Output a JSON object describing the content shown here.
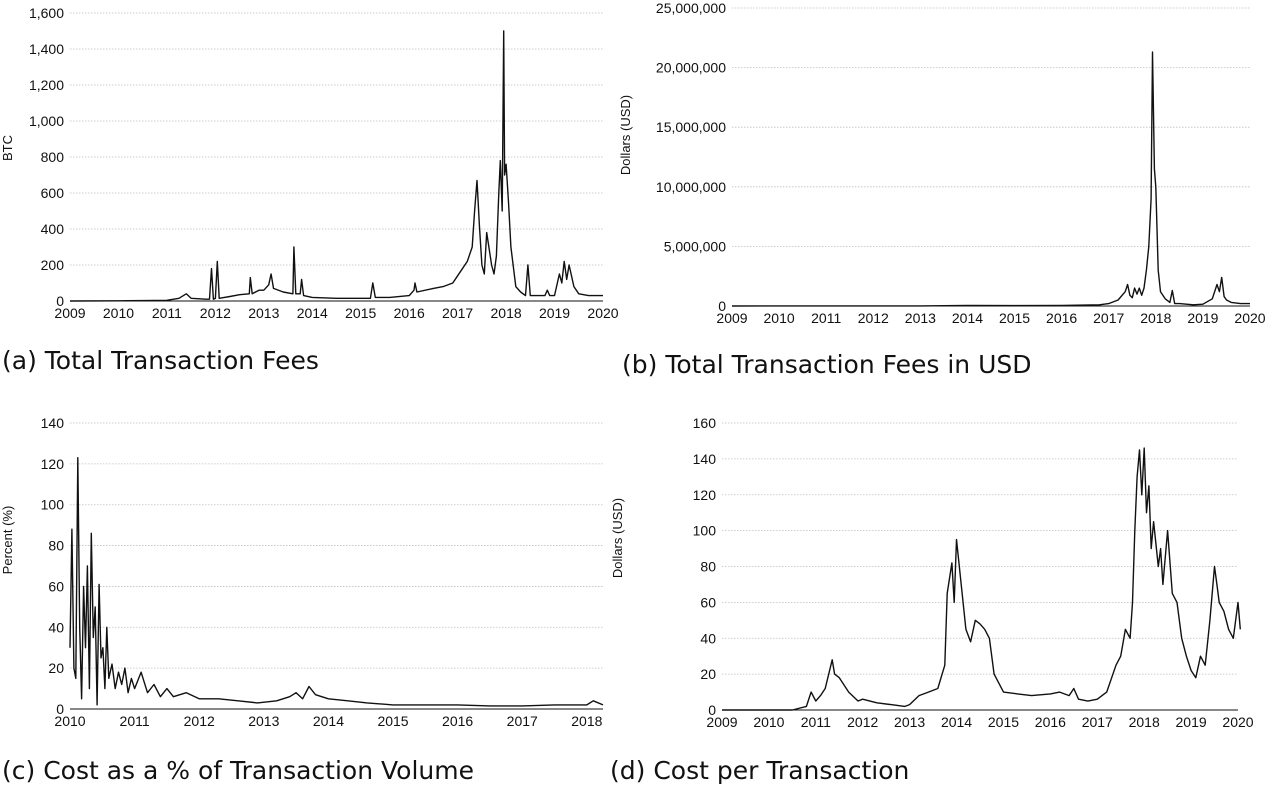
{
  "chart_data": [
    {
      "id": "a",
      "type": "line",
      "caption": "(a) Total Transaction Fees",
      "ylabel": "BTC",
      "xlabel": "",
      "ylim": [
        0,
        1600
      ],
      "yticks": [
        0,
        200,
        400,
        600,
        800,
        1000,
        1200,
        1400,
        1600
      ],
      "ytick_labels": [
        "0",
        "200",
        "400",
        "600",
        "800",
        "1,000",
        "1,200",
        "1,400",
        "1,600"
      ],
      "xlim": [
        2009,
        2020
      ],
      "xticks": [
        2009,
        2010,
        2011,
        2012,
        2013,
        2014,
        2015,
        2016,
        2017,
        2018,
        2019,
        2020
      ],
      "xtick_labels": [
        "2009",
        "2010",
        "2011",
        "2012",
        "2013",
        "2014",
        "2015",
        "2016",
        "2017",
        "2018",
        "2019",
        "2020"
      ],
      "grid": true,
      "series": [
        {
          "x": [
            2009.0,
            2010.0,
            2010.5,
            2011.0,
            2011.25,
            2011.4,
            2011.5,
            2011.8,
            2011.88,
            2011.92,
            2011.96,
            2012.0,
            2012.04,
            2012.08,
            2012.3,
            2012.5,
            2012.7,
            2012.72,
            2012.76,
            2012.9,
            2013.0,
            2013.1,
            2013.15,
            2013.2,
            2013.4,
            2013.6,
            2013.62,
            2013.66,
            2013.75,
            2013.78,
            2013.82,
            2014.0,
            2014.5,
            2015.0,
            2015.2,
            2015.25,
            2015.3,
            2015.6,
            2016.0,
            2016.1,
            2016.12,
            2016.16,
            2016.5,
            2016.7,
            2016.9,
            2017.0,
            2017.2,
            2017.3,
            2017.35,
            2017.4,
            2017.45,
            2017.5,
            2017.55,
            2017.6,
            2017.7,
            2017.75,
            2017.8,
            2017.85,
            2017.88,
            2017.92,
            2017.95,
            2017.97,
            2018.0,
            2018.05,
            2018.1,
            2018.2,
            2018.3,
            2018.4,
            2018.45,
            2018.5,
            2018.8,
            2018.85,
            2018.9,
            2019.0,
            2019.1,
            2019.15,
            2019.2,
            2019.25,
            2019.3,
            2019.4,
            2019.5,
            2019.7,
            2020.0
          ],
          "values": [
            0,
            1,
            2,
            4,
            15,
            40,
            15,
            10,
            10,
            180,
            10,
            15,
            220,
            15,
            25,
            35,
            40,
            130,
            40,
            60,
            60,
            90,
            150,
            70,
            50,
            40,
            300,
            40,
            40,
            120,
            30,
            20,
            15,
            15,
            15,
            100,
            20,
            20,
            30,
            60,
            100,
            50,
            70,
            80,
            100,
            140,
            220,
            300,
            500,
            670,
            420,
            200,
            150,
            380,
            200,
            150,
            250,
            600,
            780,
            500,
            1500,
            700,
            760,
            550,
            300,
            80,
            50,
            30,
            200,
            30,
            30,
            60,
            30,
            30,
            150,
            100,
            220,
            120,
            200,
            80,
            40,
            30,
            30
          ]
        }
      ]
    },
    {
      "id": "b",
      "type": "line",
      "caption": "(b) Total Transaction Fees in USD",
      "ylabel": "Dollars (USD)",
      "xlabel": "",
      "ylim": [
        0,
        25000000
      ],
      "yticks": [
        0,
        5000000,
        10000000,
        15000000,
        20000000,
        25000000
      ],
      "ytick_labels": [
        "0",
        "5,000,000",
        "10,000,000",
        "15,000,000",
        "20,000,000",
        "25,000,000"
      ],
      "xlim": [
        2009,
        2020
      ],
      "xticks": [
        2009,
        2010,
        2011,
        2012,
        2013,
        2014,
        2015,
        2016,
        2017,
        2018,
        2019,
        2020
      ],
      "xtick_labels": [
        "2009",
        "2010",
        "2011",
        "2012",
        "2013",
        "2014",
        "2015",
        "2016",
        "2017",
        "2018",
        "2019",
        "2020"
      ],
      "grid": true,
      "series": [
        {
          "x": [
            2009.0,
            2013.0,
            2014.0,
            2015.0,
            2016.0,
            2016.8,
            2017.0,
            2017.2,
            2017.35,
            2017.4,
            2017.45,
            2017.5,
            2017.55,
            2017.6,
            2017.65,
            2017.7,
            2017.75,
            2017.8,
            2017.85,
            2017.9,
            2017.93,
            2017.97,
            2018.0,
            2018.05,
            2018.1,
            2018.2,
            2018.3,
            2018.35,
            2018.4,
            2018.5,
            2018.8,
            2019.0,
            2019.2,
            2019.3,
            2019.35,
            2019.4,
            2019.45,
            2019.5,
            2019.6,
            2019.8,
            2020.0
          ],
          "values": [
            0,
            10000,
            50000,
            30000,
            40000,
            100000,
            200000,
            500000,
            1200000,
            1800000,
            900000,
            700000,
            1500000,
            1000000,
            1500000,
            900000,
            1500000,
            3000000,
            5000000,
            9000000,
            21300000,
            11500000,
            10000000,
            3000000,
            1200000,
            600000,
            300000,
            1300000,
            200000,
            200000,
            100000,
            150000,
            600000,
            1800000,
            1200000,
            2400000,
            800000,
            500000,
            300000,
            200000,
            200000
          ]
        }
      ]
    },
    {
      "id": "c",
      "type": "line",
      "caption": "(c) Cost as a % of Transaction Volume",
      "ylabel": "Percent (%)",
      "xlabel": "",
      "ylim": [
        0,
        140
      ],
      "yticks": [
        0,
        20,
        40,
        60,
        80,
        100,
        120,
        140
      ],
      "ytick_labels": [
        "0",
        "20",
        "40",
        "60",
        "80",
        "100",
        "120",
        "140"
      ],
      "xlim": [
        2010,
        2018.25
      ],
      "xticks": [
        2010,
        2011,
        2012,
        2013,
        2014,
        2015,
        2016,
        2017,
        2018
      ],
      "xtick_labels": [
        "2010",
        "2011",
        "2012",
        "2013",
        "2014",
        "2015",
        "2016",
        "2017",
        "2018"
      ],
      "grid": true,
      "series": [
        {
          "x": [
            2010.0,
            2010.03,
            2010.06,
            2010.09,
            2010.12,
            2010.15,
            2010.18,
            2010.21,
            2010.24,
            2010.27,
            2010.3,
            2010.33,
            2010.36,
            2010.39,
            2010.42,
            2010.45,
            2010.48,
            2010.51,
            2010.54,
            2010.57,
            2010.6,
            2010.65,
            2010.7,
            2010.75,
            2010.8,
            2010.85,
            2010.9,
            2010.95,
            2011.0,
            2011.1,
            2011.2,
            2011.3,
            2011.4,
            2011.5,
            2011.6,
            2011.8,
            2012.0,
            2012.3,
            2012.6,
            2012.9,
            2013.2,
            2013.4,
            2013.5,
            2013.6,
            2013.7,
            2013.8,
            2014.0,
            2014.3,
            2014.6,
            2015.0,
            2015.5,
            2016.0,
            2016.5,
            2017.0,
            2017.5,
            2018.0,
            2018.1,
            2018.25
          ],
          "values": [
            30,
            88,
            20,
            15,
            123,
            40,
            5,
            60,
            30,
            70,
            10,
            86,
            35,
            50,
            2,
            61,
            25,
            30,
            10,
            40,
            15,
            22,
            10,
            18,
            12,
            20,
            8,
            15,
            10,
            18,
            8,
            12,
            6,
            10,
            6,
            8,
            5,
            5,
            4,
            3,
            4,
            6,
            8,
            5,
            11,
            7,
            5,
            4,
            3,
            2,
            2,
            2,
            1.5,
            1.5,
            2,
            2,
            4,
            2
          ]
        }
      ]
    },
    {
      "id": "d",
      "type": "line",
      "caption": "(d) Cost per Transaction",
      "ylabel": "Dollars (USD)",
      "xlabel": "",
      "ylim": [
        0,
        160
      ],
      "yticks": [
        0,
        20,
        40,
        60,
        80,
        100,
        120,
        140,
        160
      ],
      "ytick_labels": [
        "0",
        "20",
        "40",
        "60",
        "80",
        "100",
        "120",
        "140",
        "160"
      ],
      "xlim": [
        2009,
        2020
      ],
      "xticks": [
        2009,
        2010,
        2011,
        2012,
        2013,
        2014,
        2015,
        2016,
        2017,
        2018,
        2019,
        2020
      ],
      "xtick_labels": [
        "2009",
        "2010",
        "2011",
        "2012",
        "2013",
        "2014",
        "2015",
        "2016",
        "2017",
        "2018",
        "2019",
        "2020"
      ],
      "grid": true,
      "series": [
        {
          "x": [
            2009.0,
            2010.0,
            2010.5,
            2010.8,
            2010.9,
            2011.0,
            2011.1,
            2011.2,
            2011.35,
            2011.4,
            2011.5,
            2011.7,
            2011.9,
            2012.0,
            2012.3,
            2012.6,
            2012.9,
            2013.0,
            2013.2,
            2013.4,
            2013.6,
            2013.75,
            2013.8,
            2013.9,
            2013.95,
            2014.0,
            2014.1,
            2014.2,
            2014.3,
            2014.4,
            2014.5,
            2014.6,
            2014.7,
            2014.8,
            2015.0,
            2015.3,
            2015.6,
            2016.0,
            2016.2,
            2016.4,
            2016.5,
            2016.6,
            2016.8,
            2017.0,
            2017.2,
            2017.4,
            2017.5,
            2017.6,
            2017.7,
            2017.75,
            2017.8,
            2017.85,
            2017.9,
            2017.95,
            2018.0,
            2018.05,
            2018.1,
            2018.15,
            2018.2,
            2018.3,
            2018.35,
            2018.4,
            2018.5,
            2018.6,
            2018.7,
            2018.8,
            2018.9,
            2019.0,
            2019.1,
            2019.2,
            2019.3,
            2019.4,
            2019.45,
            2019.5,
            2019.55,
            2019.6,
            2019.7,
            2019.8,
            2019.9,
            2020.0,
            2020.05
          ],
          "values": [
            0,
            0,
            0,
            2,
            10,
            5,
            8,
            12,
            28,
            20,
            18,
            10,
            5,
            6,
            4,
            3,
            2,
            3,
            8,
            10,
            12,
            25,
            65,
            82,
            60,
            95,
            70,
            45,
            38,
            50,
            48,
            45,
            40,
            20,
            10,
            9,
            8,
            9,
            10,
            8,
            12,
            6,
            5,
            6,
            10,
            25,
            30,
            45,
            40,
            60,
            100,
            130,
            145,
            120,
            146,
            110,
            125,
            90,
            105,
            80,
            90,
            70,
            100,
            65,
            60,
            40,
            30,
            22,
            18,
            30,
            25,
            50,
            65,
            80,
            70,
            60,
            55,
            45,
            40,
            60,
            45
          ]
        }
      ]
    }
  ]
}
